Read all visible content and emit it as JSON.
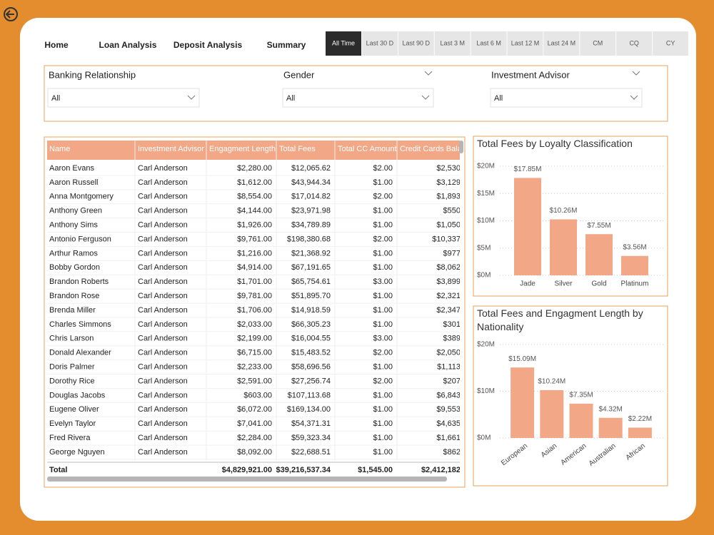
{
  "nav": {
    "links": [
      "Home",
      "Loan Analysis",
      "Deposit Analysis",
      "Summary"
    ],
    "time_filters": [
      "All Time",
      "Last 30 D",
      "Last 90 D",
      "Last 3 M",
      "Last 6 M",
      "Last 12 M",
      "Last 24 M",
      "CM",
      "CQ",
      "CY"
    ]
  },
  "filters": [
    {
      "label": "Banking Relationship",
      "value": "All"
    },
    {
      "label": "Gender",
      "value": "All"
    },
    {
      "label": "Investment Advisor",
      "value": "All"
    }
  ],
  "table": {
    "columns": [
      "Name",
      "Investment Advisor",
      "Engagment Length",
      "Total Fees",
      "Total CC Amount",
      "Credit Cards Balance"
    ],
    "rows": [
      [
        "Aaron Evans",
        "Carl Anderson",
        "$2,280.00",
        "$12,065.62",
        "$2.00",
        "$2,530"
      ],
      [
        "Aaron Russell",
        "Carl Anderson",
        "$1,612.00",
        "$43,944.34",
        "$1.00",
        "$3,129"
      ],
      [
        "Anna Montgomery",
        "Carl Anderson",
        "$8,554.00",
        "$17,014.82",
        "$2.00",
        "$1,893"
      ],
      [
        "Anthony Green",
        "Carl Anderson",
        "$4,144.00",
        "$23,971.98",
        "$1.00",
        "$550"
      ],
      [
        "Anthony Sims",
        "Carl Anderson",
        "$1,926.00",
        "$34,789.89",
        "$1.00",
        "$1,050"
      ],
      [
        "Antonio Ferguson",
        "Carl Anderson",
        "$9,761.00",
        "$198,380.68",
        "$2.00",
        "$10,337"
      ],
      [
        "Arthur Ramos",
        "Carl Anderson",
        "$1,216.00",
        "$21,368.92",
        "$1.00",
        "$977"
      ],
      [
        "Bobby Gordon",
        "Carl Anderson",
        "$4,914.00",
        "$67,191.65",
        "$1.00",
        "$8,062"
      ],
      [
        "Brandon Roberts",
        "Carl Anderson",
        "$1,701.00",
        "$65,754.61",
        "$3.00",
        "$3,899"
      ],
      [
        "Brandon Rose",
        "Carl Anderson",
        "$9,781.00",
        "$51,895.70",
        "$1.00",
        "$2,321"
      ],
      [
        "Brenda Miller",
        "Carl Anderson",
        "$1,706.00",
        "$14,918.59",
        "$1.00",
        "$2,347"
      ],
      [
        "Charles Simmons",
        "Carl Anderson",
        "$2,033.00",
        "$66,305.23",
        "$1.00",
        "$301"
      ],
      [
        "Chris Larson",
        "Carl Anderson",
        "$2,199.00",
        "$16,004.55",
        "$3.00",
        "$389"
      ],
      [
        "Donald Alexander",
        "Carl Anderson",
        "$6,715.00",
        "$15,483.52",
        "$2.00",
        "$2,050"
      ],
      [
        "Doris Palmer",
        "Carl Anderson",
        "$2,233.00",
        "$58,696.56",
        "$1.00",
        "$1,113"
      ],
      [
        "Dorothy Rice",
        "Carl Anderson",
        "$2,591.00",
        "$27,256.74",
        "$2.00",
        "$207"
      ],
      [
        "Douglas Jacobs",
        "Carl Anderson",
        "$603.00",
        "$107,113.68",
        "$1.00",
        "$6,843"
      ],
      [
        "Eugene Oliver",
        "Carl Anderson",
        "$6,072.00",
        "$169,134.00",
        "$1.00",
        "$9,553"
      ],
      [
        "Evelyn Taylor",
        "Carl Anderson",
        "$7,041.00",
        "$54,371.31",
        "$1.00",
        "$4,635"
      ],
      [
        "Fred Rivera",
        "Carl Anderson",
        "$2,284.00",
        "$59,323.34",
        "$1.00",
        "$1,661"
      ],
      [
        "George Nguyen",
        "Carl Anderson",
        "$8,092.00",
        "$22,688.51",
        "$1.00",
        "$862"
      ]
    ],
    "total": {
      "label": "Total",
      "cells": [
        "$4,829,921.00",
        "$39,216,537.34",
        "$1,545.00",
        "$2,412,182"
      ]
    }
  },
  "chart_data": [
    {
      "type": "bar",
      "title": "Total Fees by Loyalty Classification",
      "categories": [
        "Jade",
        "Silver",
        "Gold",
        "Platinum"
      ],
      "values": [
        17850000,
        10260000,
        7550000,
        3560000
      ],
      "value_labels": [
        "$17.85M",
        "$10.26M",
        "$7.55M",
        "$3.56M"
      ],
      "color": "#f2a886",
      "ylim": [
        0,
        20000000
      ],
      "yticks": [
        {
          "value": 0,
          "label": "$0M"
        },
        {
          "value": 5000000,
          "label": "$5M"
        },
        {
          "value": 10000000,
          "label": "$10M"
        },
        {
          "value": 15000000,
          "label": "$15M"
        },
        {
          "value": 20000000,
          "label": "$20M"
        }
      ],
      "grid": true
    },
    {
      "type": "bar",
      "title": "Total Fees and Engagment Length by Nationality",
      "categories": [
        "European",
        "Asian",
        "American",
        "Australian",
        "African"
      ],
      "values": [
        15090000,
        10240000,
        7350000,
        4320000,
        2220000
      ],
      "value_labels": [
        "$15.09M",
        "$10.24M",
        "$7.35M",
        "$4.32M",
        "$2.22M"
      ],
      "color": "#f2a886",
      "ylim": [
        0,
        20000000
      ],
      "yticks": [
        {
          "value": 0,
          "label": "$0M"
        },
        {
          "value": 10000000,
          "label": "$10M"
        },
        {
          "value": 20000000,
          "label": "$20M"
        }
      ],
      "grid": true
    }
  ]
}
